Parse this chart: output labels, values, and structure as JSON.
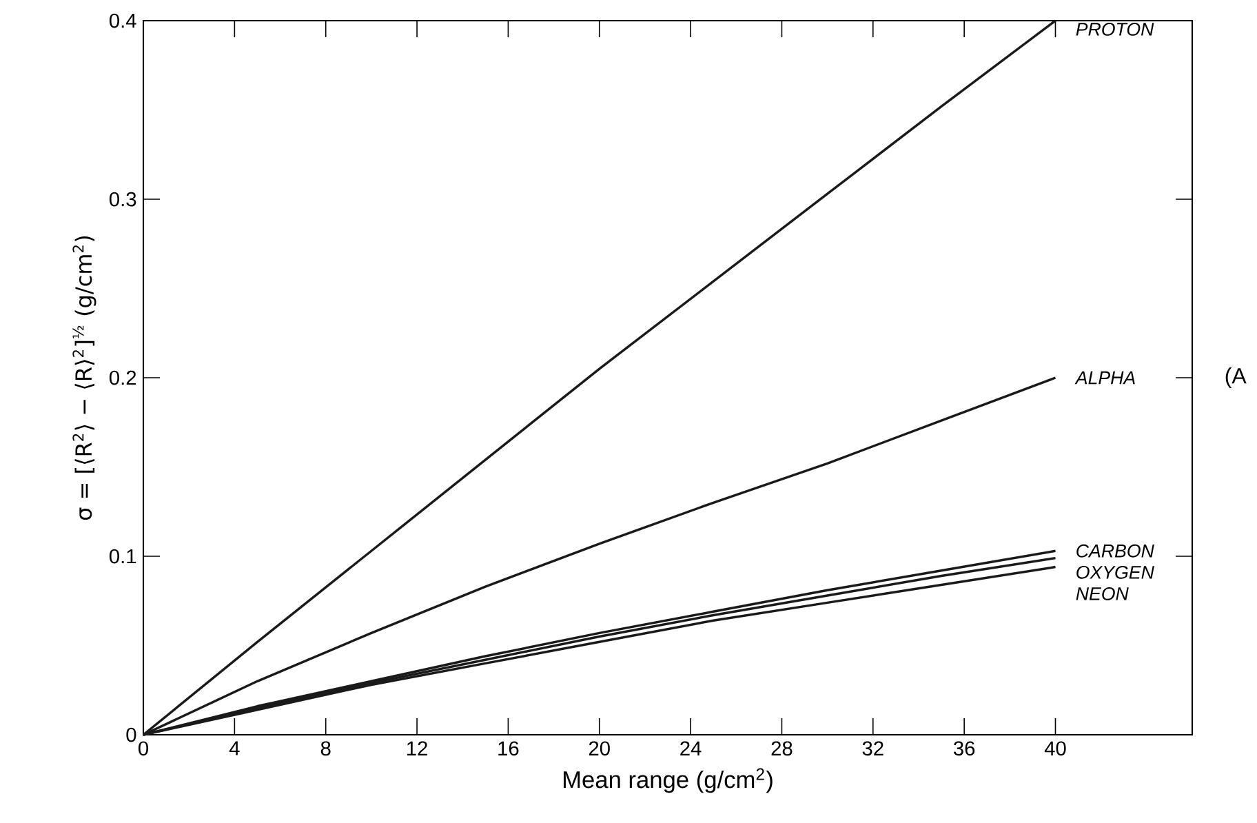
{
  "chart_data": {
    "type": "line",
    "xlabel": "Mean range (g/cm$^{2}$)",
    "ylabel": "σ = [⟨R$^{2}$⟩ − ⟨R⟩$^{2}$]$^{½}$ (g/cm$^{2}$)",
    "x": [
      0,
      5,
      10,
      15,
      20,
      25,
      30,
      35,
      40
    ],
    "series": [
      {
        "name": "PROTON",
        "color": "#1a1a1a",
        "values": [
          0,
          0.052,
          0.103,
          0.154,
          0.205,
          0.254,
          0.303,
          0.352,
          0.4
        ]
      },
      {
        "name": "ALPHA",
        "color": "#1a1a1a",
        "values": [
          0,
          0.03,
          0.057,
          0.083,
          0.107,
          0.13,
          0.152,
          0.176,
          0.2
        ]
      },
      {
        "name": "CARBON",
        "color": "#1a1a1a",
        "values": [
          0,
          0.016,
          0.03,
          0.044,
          0.057,
          0.069,
          0.081,
          0.092,
          0.103
        ]
      },
      {
        "name": "OXYGEN",
        "color": "#1a1a1a",
        "values": [
          0,
          0.015,
          0.029,
          0.042,
          0.055,
          0.067,
          0.078,
          0.089,
          0.099
        ]
      },
      {
        "name": "NEON",
        "color": "#1a1a1a",
        "values": [
          0,
          0.014,
          0.028,
          0.04,
          0.052,
          0.064,
          0.074,
          0.084,
          0.094
        ]
      }
    ],
    "xlim": [
      0,
      46
    ],
    "xticks": [
      0,
      4,
      8,
      12,
      16,
      20,
      24,
      28,
      32,
      36,
      40
    ],
    "ylim": [
      0,
      0.4
    ],
    "yticks": [
      0,
      0.1,
      0.2,
      0.3,
      0.4
    ],
    "annotations": [
      "(A"
    ]
  }
}
